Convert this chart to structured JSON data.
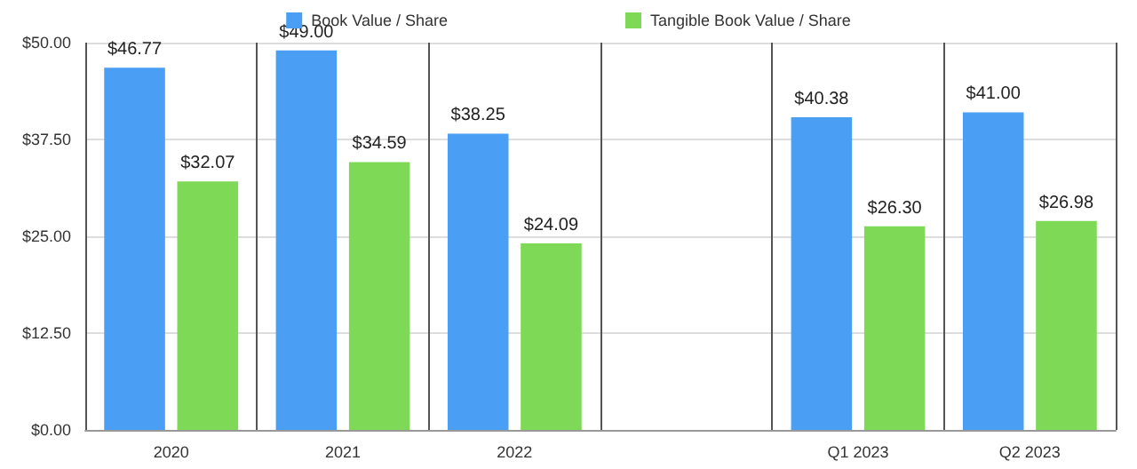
{
  "chart_data": {
    "type": "bar",
    "categories": [
      "2020",
      "2021",
      "2022",
      null,
      "Q1 2023",
      "Q2 2023"
    ],
    "series": [
      {
        "name": "Book Value / Share",
        "color": "#4a9ff5",
        "values": [
          46.77,
          49.0,
          38.25,
          null,
          40.38,
          41.0
        ],
        "value_labels": [
          "$46.77",
          "$49.00",
          "$38.25",
          null,
          "$40.38",
          "$41.00"
        ]
      },
      {
        "name": "Tangible Book Value / Share",
        "color": "#7ed957",
        "values": [
          32.07,
          34.59,
          24.09,
          null,
          26.3,
          26.98
        ],
        "value_labels": [
          "$32.07",
          "$34.59",
          "$24.09",
          null,
          "$26.30",
          "$26.98"
        ]
      }
    ],
    "ylim": [
      0,
      50
    ],
    "yticks": [
      {
        "value": 0,
        "label": "$0.00"
      },
      {
        "value": 12.5,
        "label": "$12.50"
      },
      {
        "value": 25,
        "label": "$25.00"
      },
      {
        "value": 37.5,
        "label": "$37.50"
      },
      {
        "value": 50,
        "label": "$50.00"
      }
    ],
    "grid": true,
    "legend": "top"
  }
}
